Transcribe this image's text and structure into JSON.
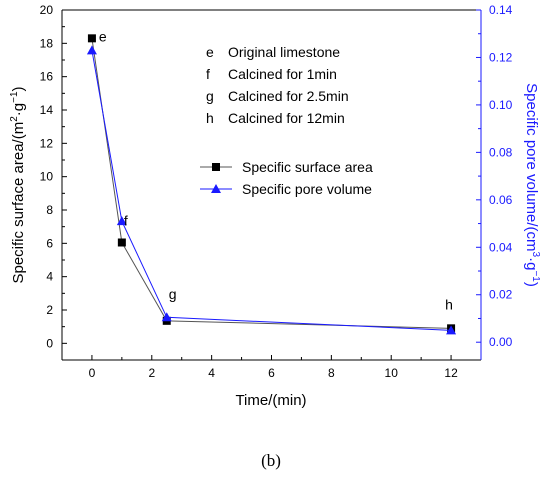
{
  "chart_data": {
    "type": "line",
    "x": [
      0,
      1,
      2.5,
      12
    ],
    "xlabel": "Time/(min)",
    "xlim": [
      -1,
      13
    ],
    "xticks": [
      0,
      2,
      4,
      6,
      8,
      10,
      12
    ],
    "ylabel_left": {
      "main": "Specific surface area/(m",
      "sup1": "2",
      "mid": "·g",
      "sup2": "−1",
      "end": ")"
    },
    "ylim_left": [
      -1,
      20
    ],
    "yticks_left": [
      0,
      2,
      4,
      6,
      8,
      10,
      12,
      14,
      16,
      18,
      20
    ],
    "ylabel_right": {
      "main": "Specific pore volume/(cm",
      "sup1": "3",
      "mid": "·g",
      "sup2": "−1",
      "end": ")"
    },
    "ylim_right": [
      -0.0075,
      0.14
    ],
    "yticks_right": [
      "0.00",
      "0.02",
      "0.04",
      "0.06",
      "0.08",
      "0.10",
      "0.12",
      "0.14"
    ],
    "right_axis_color": "#1a1aff",
    "series": [
      {
        "name": "Specific surface area",
        "axis": "left",
        "marker": "square",
        "color": "#000000",
        "line_color": "#555555",
        "values": [
          18.3,
          6.05,
          1.35,
          0.9
        ]
      },
      {
        "name": "Specific pore volume",
        "axis": "right",
        "marker": "triangle",
        "color": "#1a1aff",
        "line_color": "#1a1aff",
        "values": [
          0.123,
          0.051,
          0.0105,
          0.005
        ]
      }
    ],
    "point_labels": [
      "e",
      "f",
      "g",
      "h"
    ],
    "annotations": [
      {
        "key": "e",
        "text": "Original limestone"
      },
      {
        "key": "f",
        "text": "Calcined for 1min"
      },
      {
        "key": "g",
        "text": "Calcined for 2.5min"
      },
      {
        "key": "h",
        "text": "Calcined for 12min"
      }
    ],
    "legend_position": "center",
    "grid": false
  },
  "caption": "(b)"
}
